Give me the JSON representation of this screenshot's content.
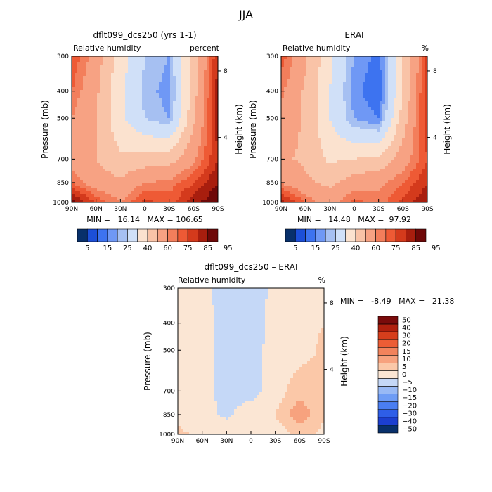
{
  "page": {
    "season_title": "JJA"
  },
  "panels": [
    {
      "title": "dflt099_dcs250 (yrs 1-1)",
      "left_title": "Relative humidity",
      "right_title": "percent",
      "ylabel": "Pressure (mb)",
      "y2label": "Height (km)",
      "stats": "MIN =   16.14   MAX = 106.65"
    },
    {
      "title": "ERAI",
      "left_title": "Relative humidity",
      "right_title": "%",
      "ylabel": "Pressure (mb)",
      "y2label": "Height (km)",
      "stats": "MIN =   14.48   MAX =  97.92"
    },
    {
      "title": "dflt099_dcs250 – ERAI",
      "left_title": "Relative humidity",
      "right_title": "%",
      "ylabel": "Pressure (mb)",
      "y2label": "Height (km)",
      "stats": "MIN =   -8.49   MAX =   21.38"
    }
  ],
  "axes": {
    "pressure_ticks": [
      "300",
      "400",
      "500",
      "700",
      "850",
      "1000"
    ],
    "height_ticks": [
      "8",
      "4"
    ],
    "lat_ticks": [
      "90N",
      "60N",
      "30N",
      "0",
      "30S",
      "60S",
      "90S"
    ]
  },
  "colorbar_rh": {
    "colors": [
      "#08306b",
      "#1c4fd8",
      "#3d73f0",
      "#6f98f5",
      "#a6c0f2",
      "#d0e0f8",
      "#fbe2cf",
      "#f9c3a7",
      "#f7a283",
      "#f37e5b",
      "#ee5a35",
      "#d43a1c",
      "#a81e0e",
      "#6e0808"
    ],
    "labels": [
      "5",
      "15",
      "25",
      "40",
      "60",
      "75",
      "85",
      "95"
    ]
  },
  "colorbar_diff": {
    "colors": [
      "#08306b",
      "#1c3fd0",
      "#2e5ee8",
      "#4a7ef2",
      "#6e9cf5",
      "#98b9f5",
      "#c5d8f7",
      "#fbe6d4",
      "#fbc8a8",
      "#f7a27e",
      "#f2835c",
      "#ec5d35",
      "#d63e1c",
      "#b0200e",
      "#7a0b0b"
    ],
    "labels": [
      "50",
      "40",
      "30",
      "20",
      "15",
      "10",
      "5",
      "0",
      "−5",
      "−10",
      "−15",
      "−20",
      "−30",
      "−40",
      "−50"
    ]
  },
  "chart_data": [
    {
      "type": "heatmap",
      "title": "dflt099_dcs250 (yrs 1-1)",
      "xlabel": "",
      "ylabel": "Pressure (mb)",
      "x": [
        "90N",
        "60N",
        "30N",
        "0",
        "30S",
        "60S",
        "90S"
      ],
      "y": [
        300,
        400,
        500,
        700,
        850,
        1000
      ],
      "variable": "Relative humidity",
      "units": "percent",
      "min": 16.14,
      "max": 106.65,
      "values": [
        [
          80,
          65,
          45,
          30,
          25,
          55,
          85
        ],
        [
          75,
          62,
          42,
          28,
          22,
          55,
          88
        ],
        [
          70,
          60,
          42,
          30,
          25,
          58,
          88
        ],
        [
          65,
          60,
          52,
          55,
          55,
          68,
          85
        ],
        [
          75,
          65,
          62,
          70,
          72,
          80,
          90
        ],
        [
          92,
          80,
          70,
          82,
          78,
          88,
          95
        ]
      ]
    },
    {
      "type": "heatmap",
      "title": "ERAI",
      "xlabel": "",
      "ylabel": "Pressure (mb)",
      "x": [
        "90N",
        "60N",
        "30N",
        "0",
        "30S",
        "60S",
        "90S"
      ],
      "y": [
        300,
        400,
        500,
        700,
        850,
        1000
      ],
      "variable": "Relative humidity",
      "units": "%",
      "min": 14.48,
      "max": 97.92,
      "values": [
        [
          78,
          62,
          42,
          25,
          18,
          50,
          82
        ],
        [
          72,
          58,
          40,
          22,
          15,
          50,
          85
        ],
        [
          68,
          58,
          40,
          25,
          20,
          55,
          85
        ],
        [
          62,
          58,
          48,
          50,
          52,
          65,
          80
        ],
        [
          70,
          62,
          58,
          65,
          68,
          75,
          85
        ],
        [
          88,
          75,
          65,
          78,
          72,
          82,
          90
        ]
      ]
    },
    {
      "type": "heatmap",
      "title": "dflt099_dcs250 – ERAI",
      "xlabel": "",
      "ylabel": "Pressure (mb)",
      "x": [
        "90N",
        "60N",
        "30N",
        "0",
        "30S",
        "60S",
        "90S"
      ],
      "y": [
        300,
        400,
        500,
        700,
        850,
        1000
      ],
      "variable": "Relative humidity",
      "units": "%",
      "min": -8.49,
      "max": 21.38,
      "values": [
        [
          3,
          2,
          -3,
          -4,
          2,
          3,
          5
        ],
        [
          3,
          2,
          -2,
          -4,
          3,
          3,
          5
        ],
        [
          2,
          2,
          -2,
          -3,
          3,
          3,
          6
        ],
        [
          3,
          2,
          -2,
          -2,
          2,
          8,
          6
        ],
        [
          4,
          2,
          -1,
          3,
          5,
          14,
          5
        ],
        [
          6,
          4,
          3,
          5,
          2,
          6,
          4
        ]
      ]
    }
  ]
}
